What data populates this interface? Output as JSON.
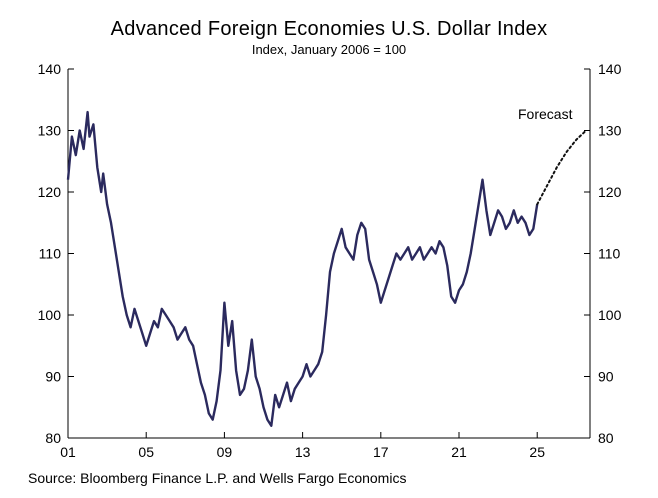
{
  "chart_data": {
    "type": "line",
    "title": "Advanced Foreign Economies U.S. Dollar Index",
    "subtitle": "Index, January 2006 = 100",
    "source": "Source: Bloomberg Finance L.P. and Wells Fargo Economics",
    "annotation": "Forecast",
    "xlabel": "",
    "ylabel": "",
    "xlim": [
      2001,
      2027.7
    ],
    "ylim": [
      80,
      140
    ],
    "x_ticks": [
      2001,
      2005,
      2009,
      2013,
      2017,
      2021,
      2025
    ],
    "x_tick_labels": [
      "01",
      "05",
      "09",
      "13",
      "17",
      "21",
      "25"
    ],
    "y_ticks": [
      80,
      90,
      100,
      110,
      120,
      130,
      140
    ],
    "y_tick_labels": [
      "80",
      "90",
      "100",
      "110",
      "120",
      "130",
      "140"
    ],
    "grid": false,
    "colors": {
      "actual": "#2b2a5e",
      "forecast": "#111111",
      "axis": "#000000"
    },
    "series": [
      {
        "style": "solid",
        "x": [
          2001.0,
          2001.2,
          2001.4,
          2001.6,
          2001.8,
          2002.0,
          2002.1,
          2002.3,
          2002.5,
          2002.7,
          2002.8,
          2003.0,
          2003.2,
          2003.4,
          2003.6,
          2003.8,
          2004.0,
          2004.2,
          2004.4,
          2004.6,
          2004.8,
          2005.0,
          2005.2,
          2005.4,
          2005.6,
          2005.8,
          2006.0,
          2006.2,
          2006.4,
          2006.6,
          2006.8,
          2007.0,
          2007.2,
          2007.4,
          2007.6,
          2007.8,
          2008.0,
          2008.2,
          2008.4,
          2008.6,
          2008.8,
          2009.0,
          2009.2,
          2009.4,
          2009.6,
          2009.8,
          2010.0,
          2010.2,
          2010.4,
          2010.6,
          2010.8,
          2011.0,
          2011.2,
          2011.4,
          2011.6,
          2011.8,
          2012.0,
          2012.2,
          2012.4,
          2012.6,
          2012.8,
          2013.0,
          2013.2,
          2013.4,
          2013.6,
          2013.8,
          2014.0,
          2014.2,
          2014.4,
          2014.6,
          2014.8,
          2015.0,
          2015.2,
          2015.4,
          2015.6,
          2015.8,
          2016.0,
          2016.2,
          2016.4,
          2016.6,
          2016.8,
          2017.0,
          2017.2,
          2017.4,
          2017.6,
          2017.8,
          2018.0,
          2018.2,
          2018.4,
          2018.6,
          2018.8,
          2019.0,
          2019.2,
          2019.4,
          2019.6,
          2019.8,
          2020.0,
          2020.2,
          2020.4,
          2020.6,
          2020.8,
          2021.0,
          2021.2,
          2021.4,
          2021.6,
          2021.8,
          2022.0,
          2022.2,
          2022.4,
          2022.6,
          2022.8,
          2023.0,
          2023.2,
          2023.4,
          2023.6,
          2023.8,
          2024.0,
          2024.2,
          2024.4,
          2024.6,
          2024.8,
          2025.0
        ],
        "y": [
          122,
          129,
          126,
          130,
          127,
          133,
          129,
          131,
          124,
          120,
          123,
          118,
          115,
          111,
          107,
          103,
          100,
          98,
          101,
          99,
          97,
          95,
          97,
          99,
          98,
          101,
          100,
          99,
          98,
          96,
          97,
          98,
          96,
          95,
          92,
          89,
          87,
          84,
          83,
          86,
          91,
          102,
          95,
          99,
          91,
          87,
          88,
          91,
          96,
          90,
          88,
          85,
          83,
          82,
          87,
          85,
          87,
          89,
          86,
          88,
          89,
          90,
          92,
          90,
          91,
          92,
          94,
          100,
          107,
          110,
          112,
          114,
          111,
          110,
          109,
          113,
          115,
          114,
          109,
          107,
          105,
          102,
          104,
          106,
          108,
          110,
          109,
          110,
          111,
          109,
          110,
          111,
          109,
          110,
          111,
          110,
          112,
          111,
          108,
          103,
          102,
          104,
          105,
          107,
          110,
          114,
          118,
          122,
          117,
          113,
          115,
          117,
          116,
          114,
          115,
          117,
          115,
          116,
          115,
          113,
          114,
          118
        ]
      },
      {
        "style": "dotted",
        "x": [
          2025.0,
          2025.5,
          2026.0,
          2026.5,
          2027.0,
          2027.5
        ],
        "y": [
          118,
          121,
          124,
          126.5,
          128.5,
          130
        ]
      }
    ]
  }
}
